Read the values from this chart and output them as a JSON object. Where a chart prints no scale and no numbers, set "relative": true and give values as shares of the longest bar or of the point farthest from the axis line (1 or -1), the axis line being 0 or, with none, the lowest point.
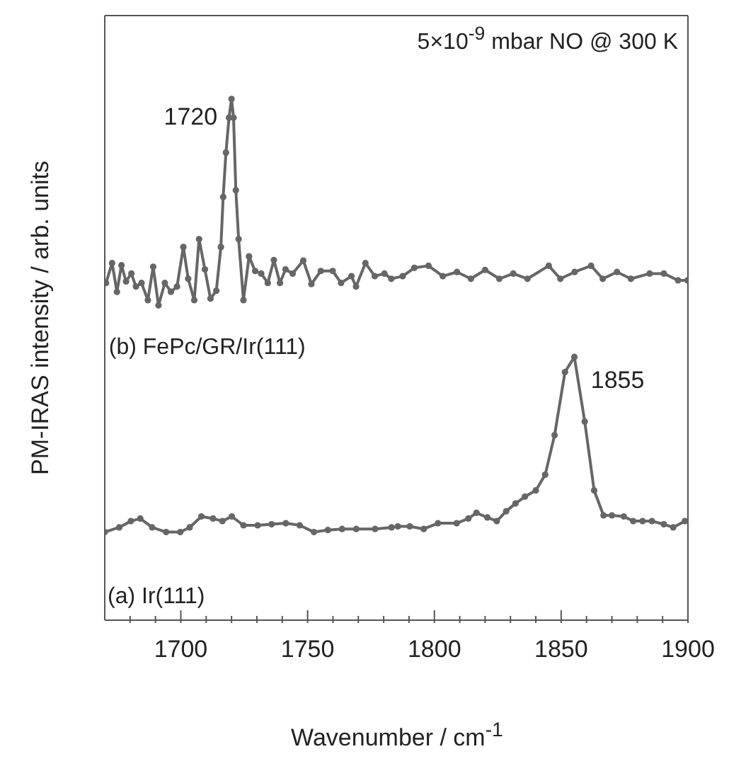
{
  "chart_data": {
    "type": "line",
    "relative": true,
    "xlabel": "Wavenumber / cm$^{-1}$",
    "ylabel": "PM-IRAS intensity / arb. units",
    "xlim": [
      1670,
      1900
    ],
    "xticks": [
      {
        "value": 1680,
        "label": null
      },
      {
        "value": 1690,
        "label": null
      },
      1700,
      {
        "value": 1710,
        "label": null
      },
      {
        "value": 1720,
        "label": null
      },
      {
        "value": 1730,
        "label": null
      },
      {
        "value": 1740,
        "label": null
      },
      1750,
      {
        "value": 1760,
        "label": null
      },
      {
        "value": 1770,
        "label": null
      },
      {
        "value": 1780,
        "label": null
      },
      {
        "value": 1790,
        "label": null
      },
      1800,
      {
        "value": 1810,
        "label": null
      },
      {
        "value": 1820,
        "label": null
      },
      {
        "value": 1830,
        "label": null
      },
      {
        "value": 1840,
        "label": null
      },
      1850,
      {
        "value": 1860,
        "label": null
      },
      {
        "value": 1870,
        "label": null
      },
      {
        "value": 1880,
        "label": null
      },
      {
        "value": 1890,
        "label": null
      },
      1900
    ],
    "marker": "circle",
    "line_style": "solid",
    "annotations": [
      "5×10$^{-9}$ mbar NO @ 300 K",
      {
        "text": "1720",
        "x": 1720,
        "y": 1.0
      },
      {
        "text": "1855",
        "x": 1855,
        "y": 0.505
      }
    ],
    "series": [
      {
        "name": "(b) FePc/GR/Ir(111)",
        "color": "#666666",
        "x": [
          1670.5,
          1672.9,
          1674.8,
          1676.6,
          1678.4,
          1680.5,
          1682.3,
          1684.5,
          1687,
          1689.1,
          1691.2,
          1693.7,
          1696.1,
          1698.5,
          1701,
          1702.9,
          1705.3,
          1707.2,
          1709.5,
          1711.7,
          1714,
          1715.8,
          1716.7,
          1717.8,
          1719,
          1720,
          1720.8,
          1721.7,
          1722.8,
          1724.7,
          1726.9,
          1729.3,
          1731.7,
          1734.3,
          1736.7,
          1739.1,
          1741.3,
          1744.1,
          1748.3,
          1751.5,
          1755.2,
          1759.9,
          1763.2,
          1767.3,
          1769.1,
          1772.8,
          1776.5,
          1780.3,
          1783,
          1787.5,
          1792.1,
          1797.7,
          1803.3,
          1808.9,
          1814.4,
          1820,
          1825.6,
          1831.1,
          1836.7,
          1845.1,
          1849.7,
          1855.3,
          1861.8,
          1866.4,
          1872,
          1877.5,
          1884.9,
          1890.5,
          1896.1,
          1899.8
        ],
        "values": [
          0.647,
          0.685,
          0.63,
          0.681,
          0.65,
          0.665,
          0.64,
          0.647,
          0.614,
          0.678,
          0.604,
          0.647,
          0.63,
          0.64,
          0.716,
          0.655,
          0.614,
          0.731,
          0.673,
          0.617,
          0.632,
          0.716,
          0.812,
          0.897,
          0.964,
          1.0,
          0.964,
          0.825,
          0.731,
          0.614,
          0.698,
          0.67,
          0.665,
          0.647,
          0.691,
          0.647,
          0.673,
          0.665,
          0.69,
          0.645,
          0.67,
          0.67,
          0.647,
          0.66,
          0.64,
          0.685,
          0.66,
          0.665,
          0.655,
          0.66,
          0.676,
          0.68,
          0.66,
          0.668,
          0.655,
          0.672,
          0.655,
          0.665,
          0.655,
          0.68,
          0.655,
          0.668,
          0.68,
          0.655,
          0.668,
          0.655,
          0.665,
          0.665,
          0.652,
          0.652
        ]
      },
      {
        "name": "(a) Ir(111)",
        "color": "#666666",
        "x": [
          1670,
          1675.7,
          1680.3,
          1684,
          1688.7,
          1694.2,
          1699.8,
          1703.5,
          1708.1,
          1712.7,
          1716.4,
          1720.1,
          1724.7,
          1730.3,
          1735.8,
          1741.4,
          1746.9,
          1752.5,
          1758,
          1763.6,
          1769.2,
          1776.6,
          1783.1,
          1785.6,
          1790.3,
          1795.8,
          1801.4,
          1808.8,
          1813.4,
          1816.6,
          1820.9,
          1824.6,
          1828.3,
          1832,
          1835.7,
          1840,
          1843.7,
          1847.4,
          1851.5,
          1855.2,
          1859.3,
          1863,
          1866.7,
          1870,
          1874.7,
          1878.4,
          1882.1,
          1885.8,
          1890.5,
          1894.2,
          1898.8
        ],
        "values": [
          0.169,
          0.178,
          0.19,
          0.195,
          0.178,
          0.169,
          0.169,
          0.178,
          0.199,
          0.195,
          0.19,
          0.199,
          0.182,
          0.182,
          0.184,
          0.186,
          0.182,
          0.169,
          0.173,
          0.175,
          0.175,
          0.175,
          0.178,
          0.18,
          0.18,
          0.175,
          0.186,
          0.186,
          0.195,
          0.206,
          0.197,
          0.19,
          0.209,
          0.224,
          0.237,
          0.249,
          0.279,
          0.355,
          0.476,
          0.505,
          0.381,
          0.249,
          0.201,
          0.201,
          0.199,
          0.19,
          0.19,
          0.19,
          0.184,
          0.178,
          0.19
        ]
      }
    ]
  }
}
